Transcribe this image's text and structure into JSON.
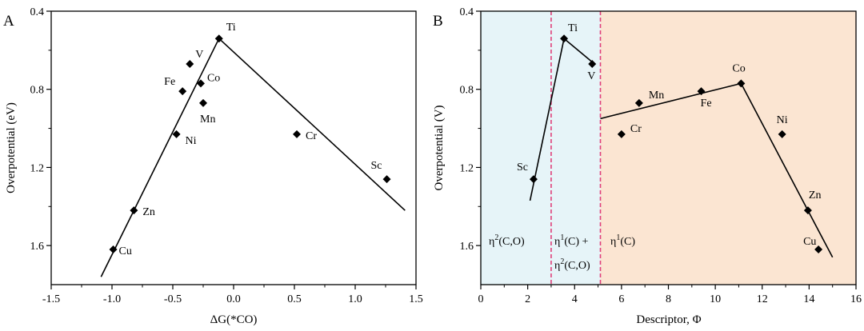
{
  "chart_data": [
    {
      "panel": "A",
      "type": "scatter",
      "xlabel": "ΔG(*CO)",
      "ylabel": "Overpotential (eV)",
      "xlim": [
        -1.5,
        1.5
      ],
      "ylim": [
        0.4,
        1.8
      ],
      "y_inverted": true,
      "xticks": [
        -1.5,
        -1.0,
        -0.5,
        0.0,
        0.5,
        1.0,
        1.5
      ],
      "xtick_labels": [
        "-1.5",
        "-1.0",
        "-0.5",
        "0.0",
        "0.5",
        "1.0",
        "1.5"
      ],
      "yticks": [
        0.4,
        0.8,
        1.2,
        1.6
      ],
      "ytick_labels": [
        "0.4",
        "0.8",
        "1.2",
        "1.6"
      ],
      "points": [
        {
          "label": "Ti",
          "x": -0.12,
          "y": 0.54
        },
        {
          "label": "V",
          "x": -0.36,
          "y": 0.67
        },
        {
          "label": "Fe",
          "x": -0.42,
          "y": 0.81
        },
        {
          "label": "Co",
          "x": -0.27,
          "y": 0.77
        },
        {
          "label": "Mn",
          "x": -0.25,
          "y": 0.87
        },
        {
          "label": "Ni",
          "x": -0.47,
          "y": 1.03
        },
        {
          "label": "Cr",
          "x": 0.52,
          "y": 1.03
        },
        {
          "label": "Sc",
          "x": 1.26,
          "y": 1.26
        },
        {
          "label": "Zn",
          "x": -0.82,
          "y": 1.42
        },
        {
          "label": "Cu",
          "x": -0.99,
          "y": 1.62
        }
      ],
      "lines": [
        {
          "name": "left-branch",
          "x": [
            -1.09,
            -0.12
          ],
          "y": [
            1.76,
            0.54
          ]
        },
        {
          "name": "right-branch",
          "x": [
            -0.12,
            1.41
          ],
          "y": [
            0.54,
            1.42
          ]
        }
      ]
    },
    {
      "panel": "B",
      "type": "scatter",
      "xlabel": "Descriptor, Φ",
      "ylabel": "Overpotential (V)",
      "xlim": [
        0,
        16
      ],
      "ylim": [
        0.4,
        1.8
      ],
      "y_inverted": true,
      "xticks": [
        0,
        2,
        4,
        6,
        8,
        10,
        12,
        14,
        16
      ],
      "xtick_labels": [
        "0",
        "2",
        "4",
        "6",
        "8",
        "10",
        "12",
        "14",
        "16"
      ],
      "yticks": [
        0.4,
        0.8,
        1.2,
        1.6
      ],
      "ytick_labels": [
        "0.4",
        "0.8",
        "1.2",
        "1.6"
      ],
      "regions": [
        {
          "name": "eta2",
          "from": 0,
          "to": 3.0,
          "color": "#e6f4f8",
          "label_parts": [
            "η",
            "2",
            "(C,O)"
          ]
        },
        {
          "name": "eta1eta2",
          "from": 3.0,
          "to": 5.1,
          "color": "#e6f4f8",
          "label_parts": [
            "η",
            "1",
            "(C) +"
          ],
          "label_parts2": [
            "η",
            "2",
            "(C,O)"
          ]
        },
        {
          "name": "eta1",
          "from": 5.1,
          "to": 16,
          "color": "#fbe5d2",
          "label_parts": [
            "η",
            "1",
            "(C)"
          ]
        }
      ],
      "dividers": [
        3.0,
        5.1
      ],
      "divider_color": "#e0407a",
      "points": [
        {
          "label": "Sc",
          "x": 2.25,
          "y": 1.26
        },
        {
          "label": "Ti",
          "x": 3.55,
          "y": 0.54
        },
        {
          "label": "V",
          "x": 4.75,
          "y": 0.67
        },
        {
          "label": "Cr",
          "x": 6.0,
          "y": 1.03
        },
        {
          "label": "Mn",
          "x": 6.75,
          "y": 0.87
        },
        {
          "label": "Fe",
          "x": 9.4,
          "y": 0.81
        },
        {
          "label": "Co",
          "x": 11.1,
          "y": 0.77
        },
        {
          "label": "Ni",
          "x": 12.85,
          "y": 1.03
        },
        {
          "label": "Zn",
          "x": 13.95,
          "y": 1.42
        },
        {
          "label": "Cu",
          "x": 14.4,
          "y": 1.62
        }
      ],
      "lines": [
        {
          "name": "sc-ti",
          "x": [
            2.1,
            3.55
          ],
          "y": [
            1.37,
            0.54
          ]
        },
        {
          "name": "ti-v",
          "x": [
            3.55,
            4.85
          ],
          "y": [
            0.54,
            0.67
          ]
        },
        {
          "name": "cr-co",
          "x": [
            5.1,
            11.1
          ],
          "y": [
            0.95,
            0.77
          ]
        },
        {
          "name": "co-cu",
          "x": [
            11.1,
            15.0
          ],
          "y": [
            0.77,
            1.66
          ]
        }
      ]
    }
  ]
}
